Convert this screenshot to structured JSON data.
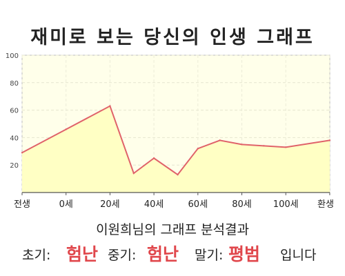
{
  "header": {
    "title": "재미로 보는 당신의 인생 그래프"
  },
  "chart_data": {
    "type": "area",
    "x_categories": [
      "전생",
      "0세",
      "20세",
      "40세",
      "60세",
      "80세",
      "100세",
      "환생"
    ],
    "x_index": [
      0,
      1.0,
      2.0,
      2.54,
      3.0,
      3.54,
      4.0,
      4.5,
      5.0,
      5.5,
      6.0,
      7.0
    ],
    "values": [
      29,
      46,
      63,
      14,
      25,
      13,
      32,
      38,
      35,
      34,
      33,
      38
    ],
    "ylim": [
      0,
      100
    ],
    "y_ticks": [
      20,
      40,
      60,
      80,
      100
    ],
    "grid": true,
    "line_color": "#e0626a",
    "fill_color": "#ffffc4",
    "plot_bg": "#ffffea"
  },
  "summary": {
    "text": "이원희님의 그래프 분석결과",
    "early_label": "초기:",
    "early_value": "험난",
    "middle_label": "중기:",
    "middle_value": "험난",
    "late_label": "말기:",
    "late_value": "평범",
    "ending": "입니다"
  },
  "colors": {
    "accent": "#e0474c"
  }
}
